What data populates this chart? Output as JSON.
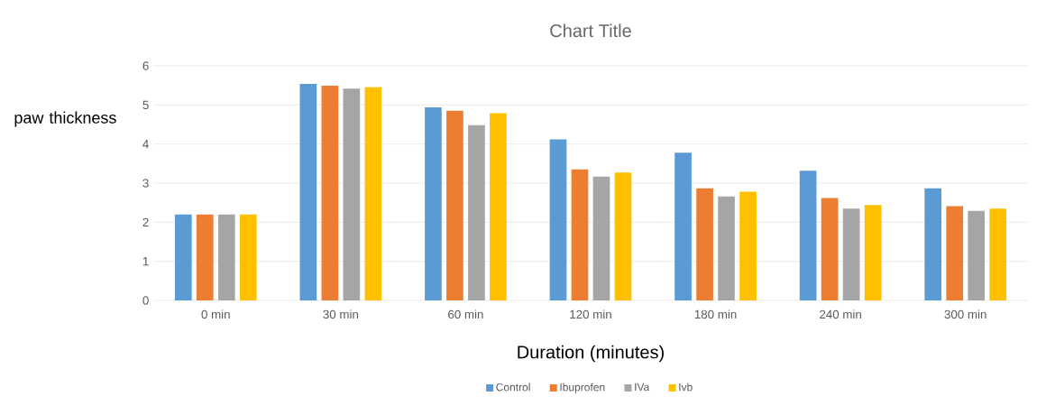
{
  "chart_data": {
    "type": "bar",
    "title": "Chart Title",
    "xlabel": "Duration  (minutes)",
    "ylabel": "paw thickness",
    "categories": [
      "0 min",
      "30 min",
      "60 min",
      "120 min",
      "180 min",
      "240 min",
      "300 min"
    ],
    "series": [
      {
        "name": "Control",
        "color": "#5b9bd5",
        "values": [
          2.2,
          5.54,
          4.94,
          4.12,
          3.78,
          3.32,
          2.87
        ]
      },
      {
        "name": "Ibuprofen",
        "color": "#ed7d31",
        "values": [
          2.2,
          5.49,
          4.85,
          3.35,
          2.87,
          2.62,
          2.41
        ]
      },
      {
        "name": "IVa",
        "color": "#a5a5a5",
        "values": [
          2.2,
          5.42,
          4.48,
          3.17,
          2.66,
          2.35,
          2.29
        ]
      },
      {
        "name": "Ivb",
        "color": "#ffc000",
        "values": [
          2.2,
          5.46,
          4.79,
          3.27,
          2.78,
          2.44,
          2.35
        ]
      }
    ],
    "ylim": [
      0,
      6
    ],
    "yticks": [
      0,
      1,
      2,
      3,
      4,
      5,
      6
    ],
    "grid": "y",
    "legend": "bottom"
  }
}
